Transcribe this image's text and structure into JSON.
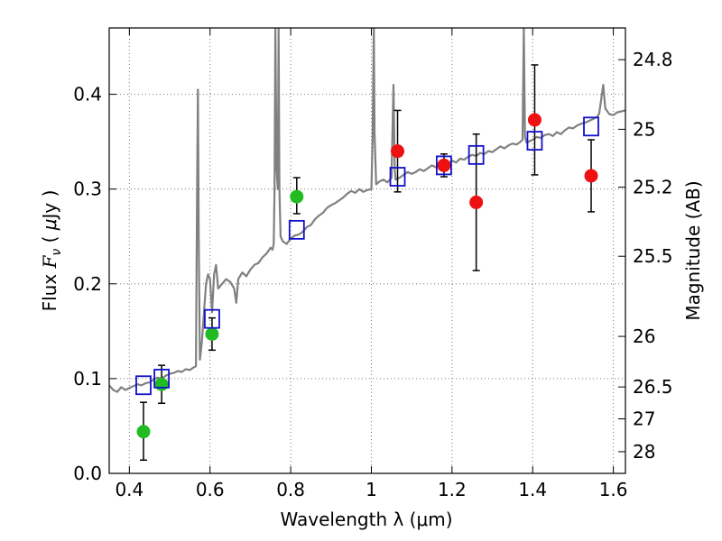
{
  "chart_data": {
    "type": "scatter",
    "title": "",
    "xlabel": "Wavelength  λ (μm)",
    "ylabel_parts": [
      "Flux  ",
      "F",
      "ν",
      "  ( ",
      "μ",
      "Jy )"
    ],
    "ylabel_right": "Magnitude (AB)",
    "xlim": [
      0.35,
      1.63
    ],
    "ylim": [
      0.0,
      0.47
    ],
    "x_ticks": [
      0.4,
      0.6,
      0.8,
      1.0,
      1.2,
      1.4,
      1.6
    ],
    "x_tick_labels": [
      "0.4",
      "0.6",
      "0.8",
      "1",
      "1.2",
      "1.4",
      "1.6"
    ],
    "y_ticks": [
      0.0,
      0.1,
      0.2,
      0.3,
      0.4
    ],
    "y_tick_labels": [
      "0.0",
      "0.1",
      "0.2",
      "0.3",
      "0.4"
    ],
    "right_ticks": [
      {
        "label": "24.8",
        "mag": 24.8
      },
      {
        "label": "25",
        "mag": 25.0
      },
      {
        "label": "25.2",
        "mag": 25.2
      },
      {
        "label": "25.5",
        "mag": 25.5
      },
      {
        "label": "26",
        "mag": 26.0
      },
      {
        "label": "26.5",
        "mag": 26.5
      },
      {
        "label": "27",
        "mag": 27.0
      },
      {
        "label": "28",
        "mag": 28.0
      }
    ],
    "grid": true,
    "colors": {
      "spectrum": "#808080",
      "green": "#22bb22",
      "red": "#ee1111",
      "model": "#1111cc",
      "errorbar": "#000000",
      "grid": "#777777"
    },
    "spectrum": [
      [
        0.35,
        0.093
      ],
      [
        0.36,
        0.088
      ],
      [
        0.37,
        0.086
      ],
      [
        0.38,
        0.091
      ],
      [
        0.39,
        0.088
      ],
      [
        0.4,
        0.09
      ],
      [
        0.41,
        0.092
      ],
      [
        0.42,
        0.094
      ],
      [
        0.43,
        0.093
      ],
      [
        0.44,
        0.095
      ],
      [
        0.45,
        0.096
      ],
      [
        0.46,
        0.099
      ],
      [
        0.47,
        0.101
      ],
      [
        0.48,
        0.1
      ],
      [
        0.49,
        0.103
      ],
      [
        0.5,
        0.105
      ],
      [
        0.51,
        0.106
      ],
      [
        0.52,
        0.108
      ],
      [
        0.53,
        0.107
      ],
      [
        0.54,
        0.11
      ],
      [
        0.55,
        0.109
      ],
      [
        0.56,
        0.112
      ],
      [
        0.565,
        0.113
      ],
      [
        0.568,
        0.3
      ],
      [
        0.57,
        0.405
      ],
      [
        0.572,
        0.25
      ],
      [
        0.575,
        0.12
      ],
      [
        0.58,
        0.14
      ],
      [
        0.585,
        0.17
      ],
      [
        0.59,
        0.2
      ],
      [
        0.595,
        0.21
      ],
      [
        0.6,
        0.205
      ],
      [
        0.605,
        0.17
      ],
      [
        0.61,
        0.21
      ],
      [
        0.615,
        0.22
      ],
      [
        0.62,
        0.195
      ],
      [
        0.63,
        0.2
      ],
      [
        0.64,
        0.205
      ],
      [
        0.65,
        0.202
      ],
      [
        0.66,
        0.195
      ],
      [
        0.665,
        0.18
      ],
      [
        0.67,
        0.205
      ],
      [
        0.68,
        0.212
      ],
      [
        0.69,
        0.208
      ],
      [
        0.7,
        0.215
      ],
      [
        0.71,
        0.22
      ],
      [
        0.72,
        0.222
      ],
      [
        0.73,
        0.228
      ],
      [
        0.74,
        0.232
      ],
      [
        0.75,
        0.238
      ],
      [
        0.755,
        0.236
      ],
      [
        0.758,
        0.242
      ],
      [
        0.76,
        0.3
      ],
      [
        0.762,
        0.47
      ],
      [
        0.765,
        0.32
      ],
      [
        0.768,
        0.3
      ],
      [
        0.77,
        0.47
      ],
      [
        0.772,
        0.3
      ],
      [
        0.775,
        0.25
      ],
      [
        0.78,
        0.245
      ],
      [
        0.79,
        0.242
      ],
      [
        0.8,
        0.248
      ],
      [
        0.81,
        0.251
      ],
      [
        0.82,
        0.252
      ],
      [
        0.83,
        0.255
      ],
      [
        0.84,
        0.26
      ],
      [
        0.85,
        0.262
      ],
      [
        0.86,
        0.268
      ],
      [
        0.87,
        0.272
      ],
      [
        0.88,
        0.275
      ],
      [
        0.89,
        0.28
      ],
      [
        0.9,
        0.283
      ],
      [
        0.91,
        0.285
      ],
      [
        0.92,
        0.288
      ],
      [
        0.93,
        0.291
      ],
      [
        0.94,
        0.295
      ],
      [
        0.95,
        0.298
      ],
      [
        0.96,
        0.296
      ],
      [
        0.97,
        0.3
      ],
      [
        0.98,
        0.297
      ],
      [
        0.99,
        0.299
      ],
      [
        1.0,
        0.3
      ],
      [
        1.003,
        0.35
      ],
      [
        1.006,
        0.47
      ],
      [
        1.008,
        0.36
      ],
      [
        1.012,
        0.305
      ],
      [
        1.02,
        0.308
      ],
      [
        1.03,
        0.31
      ],
      [
        1.04,
        0.307
      ],
      [
        1.05,
        0.312
      ],
      [
        1.055,
        0.41
      ],
      [
        1.058,
        0.32
      ],
      [
        1.06,
        0.31
      ],
      [
        1.07,
        0.312
      ],
      [
        1.08,
        0.315
      ],
      [
        1.09,
        0.318
      ],
      [
        1.1,
        0.316
      ],
      [
        1.11,
        0.318
      ],
      [
        1.12,
        0.321
      ],
      [
        1.13,
        0.319
      ],
      [
        1.14,
        0.322
      ],
      [
        1.15,
        0.325
      ],
      [
        1.16,
        0.323
      ],
      [
        1.17,
        0.326
      ],
      [
        1.18,
        0.328
      ],
      [
        1.19,
        0.327
      ],
      [
        1.2,
        0.33
      ],
      [
        1.21,
        0.328
      ],
      [
        1.22,
        0.332
      ],
      [
        1.23,
        0.331
      ],
      [
        1.24,
        0.334
      ],
      [
        1.25,
        0.336
      ],
      [
        1.26,
        0.335
      ],
      [
        1.27,
        0.338
      ],
      [
        1.28,
        0.337
      ],
      [
        1.29,
        0.34
      ],
      [
        1.3,
        0.339
      ],
      [
        1.31,
        0.342
      ],
      [
        1.32,
        0.345
      ],
      [
        1.33,
        0.343
      ],
      [
        1.34,
        0.346
      ],
      [
        1.35,
        0.348
      ],
      [
        1.36,
        0.347
      ],
      [
        1.37,
        0.35
      ],
      [
        1.375,
        0.352
      ],
      [
        1.378,
        0.47
      ],
      [
        1.381,
        0.355
      ],
      [
        1.385,
        0.349
      ],
      [
        1.39,
        0.35
      ],
      [
        1.4,
        0.352
      ],
      [
        1.41,
        0.355
      ],
      [
        1.42,
        0.354
      ],
      [
        1.43,
        0.357
      ],
      [
        1.44,
        0.358
      ],
      [
        1.45,
        0.356
      ],
      [
        1.46,
        0.36
      ],
      [
        1.47,
        0.358
      ],
      [
        1.48,
        0.362
      ],
      [
        1.49,
        0.365
      ],
      [
        1.5,
        0.364
      ],
      [
        1.51,
        0.367
      ],
      [
        1.52,
        0.369
      ],
      [
        1.53,
        0.37
      ],
      [
        1.54,
        0.372
      ],
      [
        1.55,
        0.374
      ],
      [
        1.56,
        0.376
      ],
      [
        1.565,
        0.38
      ],
      [
        1.57,
        0.395
      ],
      [
        1.575,
        0.41
      ],
      [
        1.58,
        0.385
      ],
      [
        1.59,
        0.379
      ],
      [
        1.6,
        0.378
      ],
      [
        1.61,
        0.381
      ],
      [
        1.62,
        0.382
      ],
      [
        1.63,
        0.383
      ]
    ],
    "model_points": [
      {
        "x": 0.435,
        "y": 0.093
      },
      {
        "x": 0.48,
        "y": 0.1
      },
      {
        "x": 0.605,
        "y": 0.163
      },
      {
        "x": 0.815,
        "y": 0.257
      },
      {
        "x": 1.065,
        "y": 0.313
      },
      {
        "x": 1.18,
        "y": 0.325
      },
      {
        "x": 1.26,
        "y": 0.336
      },
      {
        "x": 1.405,
        "y": 0.351
      },
      {
        "x": 1.545,
        "y": 0.366
      }
    ],
    "observed_points": [
      {
        "x": 0.435,
        "y": 0.044,
        "err_lo": 0.03,
        "err_hi": 0.031,
        "color": "green"
      },
      {
        "x": 0.48,
        "y": 0.094,
        "err_lo": 0.02,
        "err_hi": 0.02,
        "color": "green"
      },
      {
        "x": 0.605,
        "y": 0.147,
        "err_lo": 0.017,
        "err_hi": 0.017,
        "color": "green"
      },
      {
        "x": 0.815,
        "y": 0.292,
        "err_lo": 0.018,
        "err_hi": 0.02,
        "color": "green"
      },
      {
        "x": 1.065,
        "y": 0.34,
        "err_lo": 0.043,
        "err_hi": 0.043,
        "color": "red"
      },
      {
        "x": 1.18,
        "y": 0.325,
        "err_lo": 0.012,
        "err_hi": 0.012,
        "color": "red"
      },
      {
        "x": 1.26,
        "y": 0.286,
        "err_lo": 0.072,
        "err_hi": 0.072,
        "color": "red"
      },
      {
        "x": 1.405,
        "y": 0.373,
        "err_lo": 0.058,
        "err_hi": 0.058,
        "color": "red"
      },
      {
        "x": 1.545,
        "y": 0.314,
        "err_lo": 0.038,
        "err_hi": 0.038,
        "color": "red"
      }
    ]
  }
}
